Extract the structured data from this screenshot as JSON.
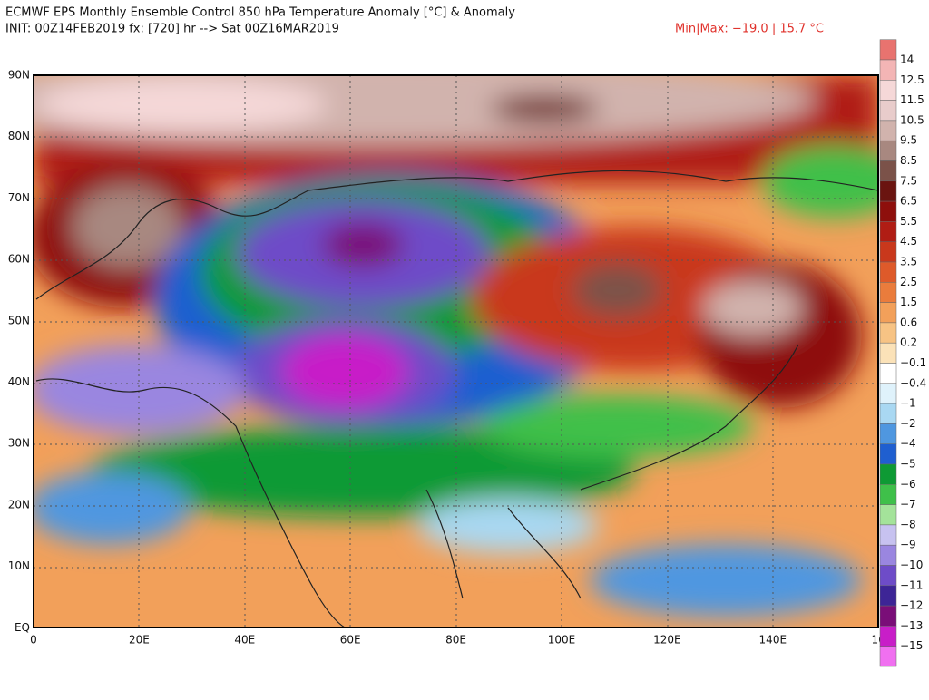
{
  "header": {
    "title": "ECMWF EPS Monthly Ensemble Control 850 hPa Temperature Anomaly [°C] & Anomaly",
    "init": "INIT: 00Z14FEB2019  fx: [720] hr --> Sat 00Z16MAR2019",
    "minmax": "Min|Max: −19.0 | 15.7 °C"
  },
  "map": {
    "lat_labels": [
      "90N",
      "80N",
      "70N",
      "60N",
      "50N",
      "40N",
      "30N",
      "20N",
      "10N",
      "EQ"
    ],
    "lon_labels": [
      "0",
      "20E",
      "40E",
      "60E",
      "80E",
      "100E",
      "120E",
      "140E",
      "16"
    ]
  },
  "colorbar": {
    "labels": [
      "14",
      "12.5",
      "11.5",
      "10.5",
      "9.5",
      "8.5",
      "7.5",
      "6.5",
      "5.5",
      "4.5",
      "3.5",
      "2.5",
      "1.5",
      "0.6",
      "0.2",
      "−0.1",
      "−0.4",
      "−1",
      "−2",
      "−4",
      "−5",
      "−6",
      "−7",
      "−8",
      "−9",
      "−10",
      "−11",
      "−12",
      "−13",
      "−15"
    ],
    "colors": [
      "#e8736f",
      "#f3b5b5",
      "#f5d8d8",
      "#e8cccb",
      "#d1b3ad",
      "#a88880",
      "#7b5249",
      "#6a1410",
      "#8e0f0c",
      "#b01d14",
      "#c9381c",
      "#de5a2a",
      "#ea7c3c",
      "#f2a05a",
      "#f7c384",
      "#fbe2b8",
      "#ffffff",
      "#dff2fb",
      "#a9d8f2",
      "#4f97e0",
      "#1f5fd0",
      "#0e9a34",
      "#3fc04a",
      "#a4e39a",
      "#c7c2f0",
      "#9a86e0",
      "#6e4cc8",
      "#3d2596",
      "#7a0e78",
      "#c81ec8",
      "#f070f0"
    ]
  }
}
